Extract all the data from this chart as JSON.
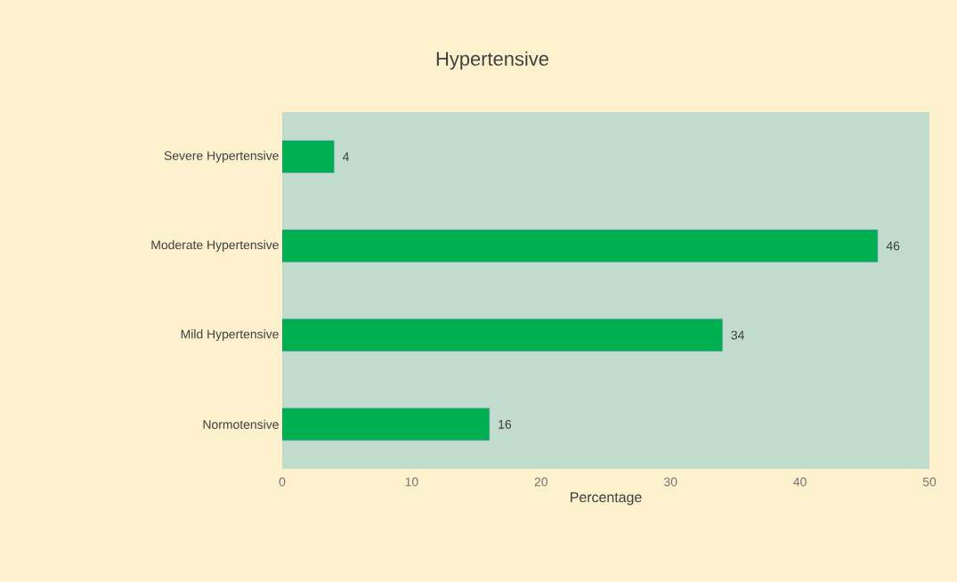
{
  "chart_data": {
    "type": "bar",
    "orientation": "horizontal",
    "title": "Hypertensive",
    "xlabel": "Percentage",
    "categories": [
      "Severe Hypertensive",
      "Moderate Hypertensive",
      "Mild Hypertensive",
      "Normotensive"
    ],
    "values": [
      4,
      46,
      34,
      16
    ],
    "color": "#00b050",
    "xlim": [
      0,
      50
    ],
    "xticks": [
      0,
      10,
      20,
      30,
      40,
      50
    ],
    "data_labels": true,
    "grid": false
  }
}
